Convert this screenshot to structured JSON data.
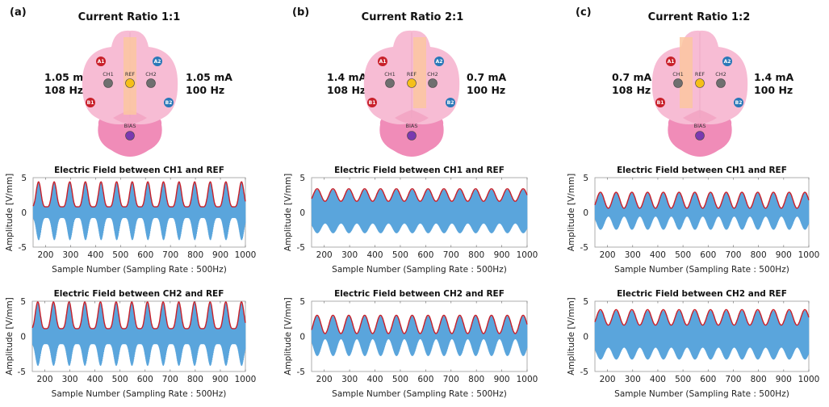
{
  "colors": {
    "carrier": "#5aa5dc",
    "envelope": "#c8202a",
    "cerebrum": "#f7bcd4",
    "cerebrum_dark": "#f3a7c5",
    "cerebellum": "#f08cb8",
    "ref_strip": "#fbc7a0",
    "ch_electrode": "#6f6f6f",
    "ref_electrode": "#f5c018",
    "bias_electrode": "#7a3ab0",
    "a_electrode": "#c8202a",
    "b_electrode_red": "#c8202a",
    "blue_electrode": "#2a78b8"
  },
  "panels": [
    {
      "letter": "(a)",
      "title": "Current Ratio 1:1",
      "left_current": "1.05 mA",
      "left_freq": "108 Hz",
      "right_current": "1.05 mA",
      "right_freq": "100 Hz",
      "ref_strip_position": "center",
      "electrodes": {
        "A1": "A1",
        "A2": "A2",
        "B1": "B1",
        "B2": "B2",
        "CH1": "CH1",
        "CH2": "CH2",
        "REF": "REF",
        "BIAS": "BIAS"
      }
    },
    {
      "letter": "(b)",
      "title": "Current Ratio 2:1",
      "left_current": "1.4 mA",
      "left_freq": "108 Hz",
      "right_current": "0.7 mA",
      "right_freq": "100 Hz",
      "ref_strip_position": "right",
      "electrodes": {
        "A1": "A1",
        "A2": "A2",
        "B1": "B1",
        "B2": "B2",
        "CH1": "CH1",
        "CH2": "CH2",
        "REF": "REF",
        "BIAS": "BIAS"
      }
    },
    {
      "letter": "(c)",
      "title": "Current Ratio 1:2",
      "left_current": "0.7 mA",
      "left_freq": "108 Hz",
      "right_current": "1.4 mA",
      "right_freq": "100 Hz",
      "ref_strip_position": "left",
      "electrodes": {
        "A1": "A1",
        "A2": "A2",
        "B1": "B1",
        "B2": "B2",
        "CH1": "CH1",
        "CH2": "CH2",
        "REF": "REF",
        "BIAS": "BIAS"
      }
    }
  ],
  "chart_data": [
    {
      "panel": "a",
      "type": "line",
      "title": "Electric Field between CH1 and REF",
      "xlabel": "Sample Number (Sampling Rate : 500Hz)",
      "ylabel": "Amplitude [V/mm]",
      "xlim": [
        150,
        1000
      ],
      "ylim": [
        -5,
        5
      ],
      "xticks": [
        200,
        300,
        400,
        500,
        600,
        700,
        800,
        900,
        1000
      ],
      "yticks": [
        -5,
        0,
        5
      ],
      "series": [
        {
          "name": "signal",
          "beat_period_samples": 62.5,
          "env_max": 4.4,
          "env_min": 0.8,
          "neg_max": -4.0,
          "neg_min": -0.8,
          "peak_shape": "sharp"
        },
        {
          "name": "envelope",
          "max": 4.4,
          "min": 0.8
        }
      ]
    },
    {
      "panel": "a",
      "type": "line",
      "title": "Electric Field between CH2 and REF",
      "xlabel": "Sample Number (Sampling Rate : 500Hz)",
      "ylabel": "Amplitude [V/mm]",
      "xlim": [
        150,
        1000
      ],
      "ylim": [
        -5,
        5
      ],
      "xticks": [
        200,
        300,
        400,
        500,
        600,
        700,
        800,
        900,
        1000
      ],
      "yticks": [
        -5,
        0,
        5
      ],
      "series": [
        {
          "name": "signal",
          "beat_period_samples": 62.5,
          "env_max": 4.9,
          "env_min": 1.1,
          "neg_max": -4.2,
          "neg_min": -1.1,
          "peak_shape": "sharp"
        },
        {
          "name": "envelope",
          "max": 4.9,
          "min": 1.1
        }
      ]
    },
    {
      "panel": "b",
      "type": "line",
      "title": "Electric Field between CH1 and REF",
      "xlabel": "Sample Number (Sampling Rate : 500Hz)",
      "ylabel": "Amplitude [V/mm]",
      "xlim": [
        150,
        1000
      ],
      "ylim": [
        -5,
        5
      ],
      "xticks": [
        200,
        300,
        400,
        500,
        600,
        700,
        800,
        900,
        1000
      ],
      "yticks": [
        -5,
        0,
        5
      ],
      "series": [
        {
          "name": "signal",
          "beat_period_samples": 62.5,
          "env_max": 3.4,
          "env_min": 1.6,
          "neg_max": -3.0,
          "neg_min": -1.6,
          "peak_shape": "round"
        },
        {
          "name": "envelope",
          "max": 3.4,
          "min": 1.6
        }
      ]
    },
    {
      "panel": "b",
      "type": "line",
      "title": "Electric Field between CH2 and REF",
      "xlabel": "Sample Number (Sampling Rate : 500Hz)",
      "ylabel": "Amplitude [V/mm]",
      "xlim": [
        150,
        1000
      ],
      "ylim": [
        -5,
        5
      ],
      "xticks": [
        200,
        300,
        400,
        500,
        600,
        700,
        800,
        900,
        1000
      ],
      "yticks": [
        -5,
        0,
        5
      ],
      "series": [
        {
          "name": "signal",
          "beat_period_samples": 62.5,
          "env_max": 3.0,
          "env_min": 0.4,
          "neg_max": -2.8,
          "neg_min": -0.4,
          "peak_shape": "round"
        },
        {
          "name": "envelope",
          "max": 3.0,
          "min": 0.4
        }
      ]
    },
    {
      "panel": "c",
      "type": "line",
      "title": "Electric Field between CH1 and REF",
      "xlabel": "Sample Number (Sampling Rate : 500Hz)",
      "ylabel": "Amplitude [V/mm]",
      "xlim": [
        150,
        1000
      ],
      "ylim": [
        -5,
        5
      ],
      "xticks": [
        200,
        300,
        400,
        500,
        600,
        700,
        800,
        900,
        1000
      ],
      "yticks": [
        -5,
        0,
        5
      ],
      "series": [
        {
          "name": "signal",
          "beat_period_samples": 62.5,
          "env_max": 2.9,
          "env_min": 0.6,
          "neg_max": -2.5,
          "neg_min": -0.6,
          "peak_shape": "round"
        },
        {
          "name": "envelope",
          "max": 2.9,
          "min": 0.6
        }
      ]
    },
    {
      "panel": "c",
      "type": "line",
      "title": "Electric Field between CH2 and REF",
      "xlabel": "Sample Number (Sampling Rate : 500Hz)",
      "ylabel": "Amplitude [V/mm]",
      "xlim": [
        150,
        1000
      ],
      "ylim": [
        -5,
        5
      ],
      "xticks": [
        200,
        300,
        400,
        500,
        600,
        700,
        800,
        900,
        1000
      ],
      "yticks": [
        -5,
        0,
        5
      ],
      "series": [
        {
          "name": "signal",
          "beat_period_samples": 62.5,
          "env_max": 3.8,
          "env_min": 1.6,
          "neg_max": -3.3,
          "neg_min": -1.6,
          "peak_shape": "round"
        },
        {
          "name": "envelope",
          "max": 3.8,
          "min": 1.6
        }
      ]
    }
  ]
}
